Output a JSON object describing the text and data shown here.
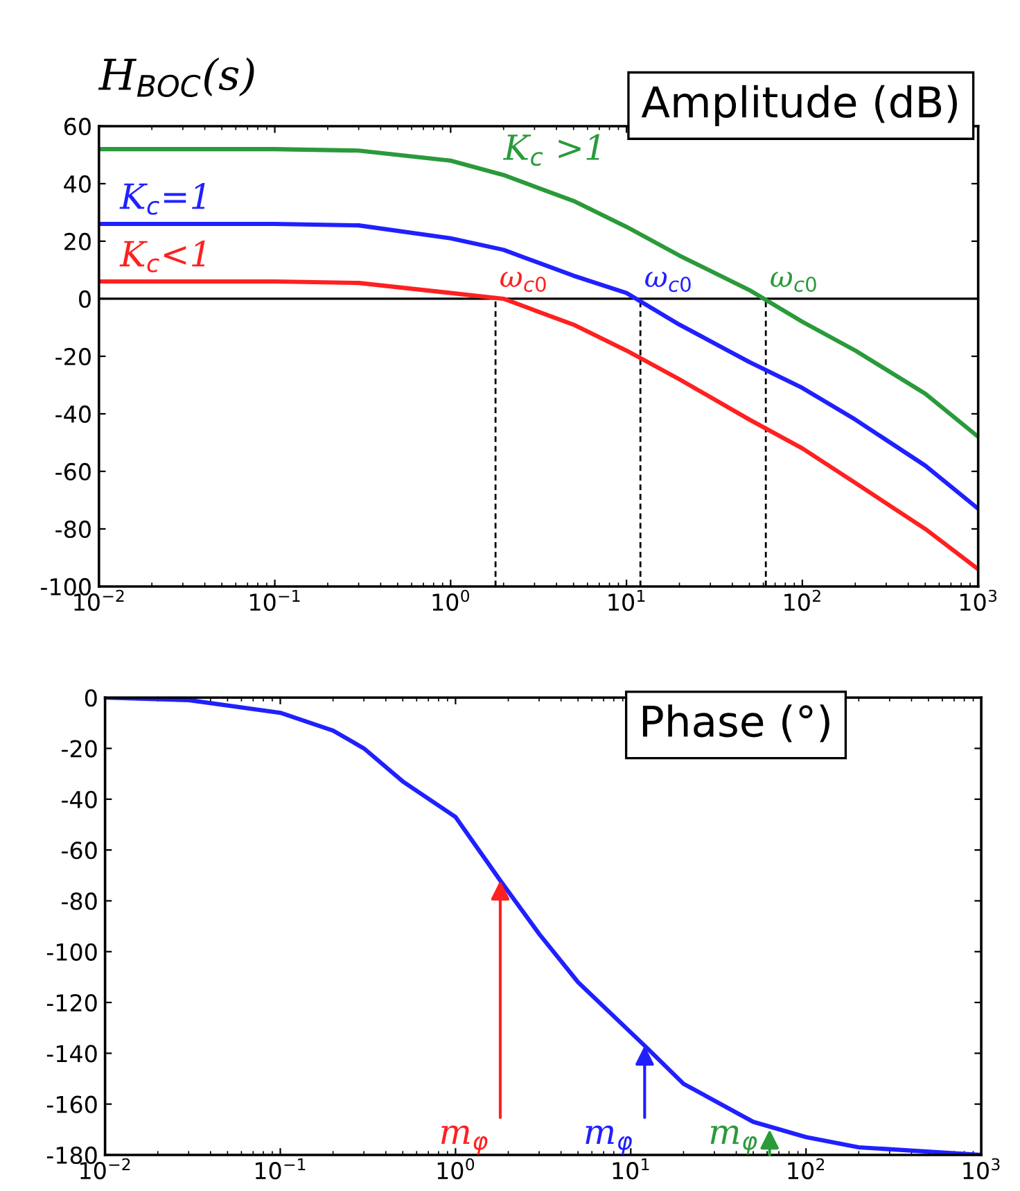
{
  "chart_data": [
    {
      "type": "line",
      "title": "Amplitude (dB)",
      "xlim": [
        0.01,
        1000
      ],
      "ylim": [
        -100,
        60
      ],
      "log": "x",
      "xticks": [
        {
          "value": 0.01,
          "label": "10$^{−2}$"
        },
        {
          "value": 0.1,
          "label": "10$^{−1}$"
        },
        {
          "value": 1,
          "label": "10$^{0}$"
        },
        {
          "value": 10,
          "label": "10$^{1}$"
        },
        {
          "value": 100,
          "label": "10$^{2}$"
        },
        {
          "value": 1000,
          "label": "10$^{3}$"
        }
      ],
      "yticks": [
        -100,
        -80,
        -60,
        -40,
        -20,
        0,
        20,
        40,
        60
      ],
      "grid": false,
      "legend": false,
      "x": [
        0.01,
        0.1,
        0.3,
        1,
        2,
        3,
        5,
        10,
        20,
        50,
        100,
        200,
        500,
        1000
      ],
      "series": [
        {
          "name": "K$_{c}$ >1",
          "color": "#2a9a3a",
          "values": [
            52,
            52,
            51.5,
            48,
            43,
            39,
            34,
            25,
            15,
            3,
            -8,
            -18,
            -33,
            -48
          ]
        },
        {
          "name": "K$_{c}$=1",
          "color": "#2020ff",
          "values": [
            26,
            26,
            25.5,
            21,
            17,
            13,
            8,
            2,
            -9,
            -22,
            -31,
            -42,
            -58,
            -73
          ]
        },
        {
          "name": "K$_{c}$<1",
          "color": "#ff2020",
          "values": [
            6,
            6,
            5.5,
            2,
            0,
            -4,
            -9,
            -18,
            -28,
            -42,
            -52,
            -64,
            -80,
            -94
          ]
        }
      ],
      "ref_lines": [
        {
          "axis": "y",
          "value": 0,
          "color": "#000000",
          "line_style": "solid"
        },
        {
          "axis": "x",
          "value": 1.8,
          "color": "#000000",
          "line_style": "dashed"
        },
        {
          "axis": "x",
          "value": 12,
          "color": "#000000",
          "line_style": "dashed"
        },
        {
          "axis": "x",
          "value": 62,
          "color": "#000000",
          "line_style": "dashed"
        }
      ],
      "annotations": [
        "H$_{BOC}$(s)",
        {
          "text": "ω$_{c0}$",
          "x": 1.8,
          "y": 0
        },
        {
          "text": "ω$_{c0}$",
          "x": 12,
          "y": 0
        },
        {
          "text": "ω$_{c0}$",
          "x": 62,
          "y": 0
        }
      ]
    },
    {
      "type": "line",
      "title": "Phase (°)",
      "xlim": [
        0.01,
        1000
      ],
      "ylim": [
        -180,
        0
      ],
      "log": "x",
      "xticks": [
        {
          "value": 0.01,
          "label": "10$^{−2}$"
        },
        {
          "value": 0.1,
          "label": "10$^{−1}$"
        },
        {
          "value": 1,
          "label": "10$^{0}$"
        },
        {
          "value": 10,
          "label": "10$^{1}$"
        },
        {
          "value": 100,
          "label": "10$^{2}$"
        },
        {
          "value": 1000,
          "label": "10$^{3}$"
        }
      ],
      "yticks": [
        -180,
        -160,
        -140,
        -120,
        -100,
        -80,
        -60,
        -40,
        -20,
        0
      ],
      "grid": false,
      "legend": false,
      "x": [
        0.01,
        0.03,
        0.1,
        0.2,
        0.3,
        0.5,
        1,
        1.8,
        3,
        5,
        12,
        20,
        50,
        100,
        200,
        1000
      ],
      "series": [
        {
          "color": "#2020ff",
          "values": [
            0,
            -1,
            -6,
            -13,
            -20,
            -33,
            -47,
            -72,
            -93,
            -112,
            -137,
            -152,
            -167,
            -173,
            -177,
            -180
          ]
        }
      ],
      "annotations": [
        {
          "text": "m$_{φ}$",
          "x": 1.8,
          "y": -72
        },
        {
          "text": "m$_{φ}$",
          "x": 12,
          "y": -137
        },
        {
          "text": "m$_{φ}$",
          "x": 62,
          "y": -170
        }
      ]
    }
  ]
}
